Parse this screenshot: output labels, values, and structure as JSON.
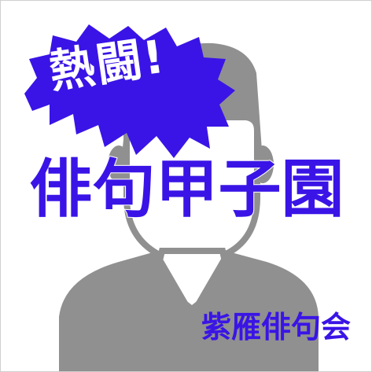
{
  "burst": {
    "text": "熱闘!",
    "color": "#3a14e6",
    "text_color": "#ffffff"
  },
  "title": {
    "text": "俳句甲子園",
    "color": "#3a14e6"
  },
  "organization": {
    "text": "紫雁俳句会",
    "color": "#3a14e6"
  },
  "silhouette": {
    "icon": "person-silhouette-icon",
    "color": "#909090"
  }
}
